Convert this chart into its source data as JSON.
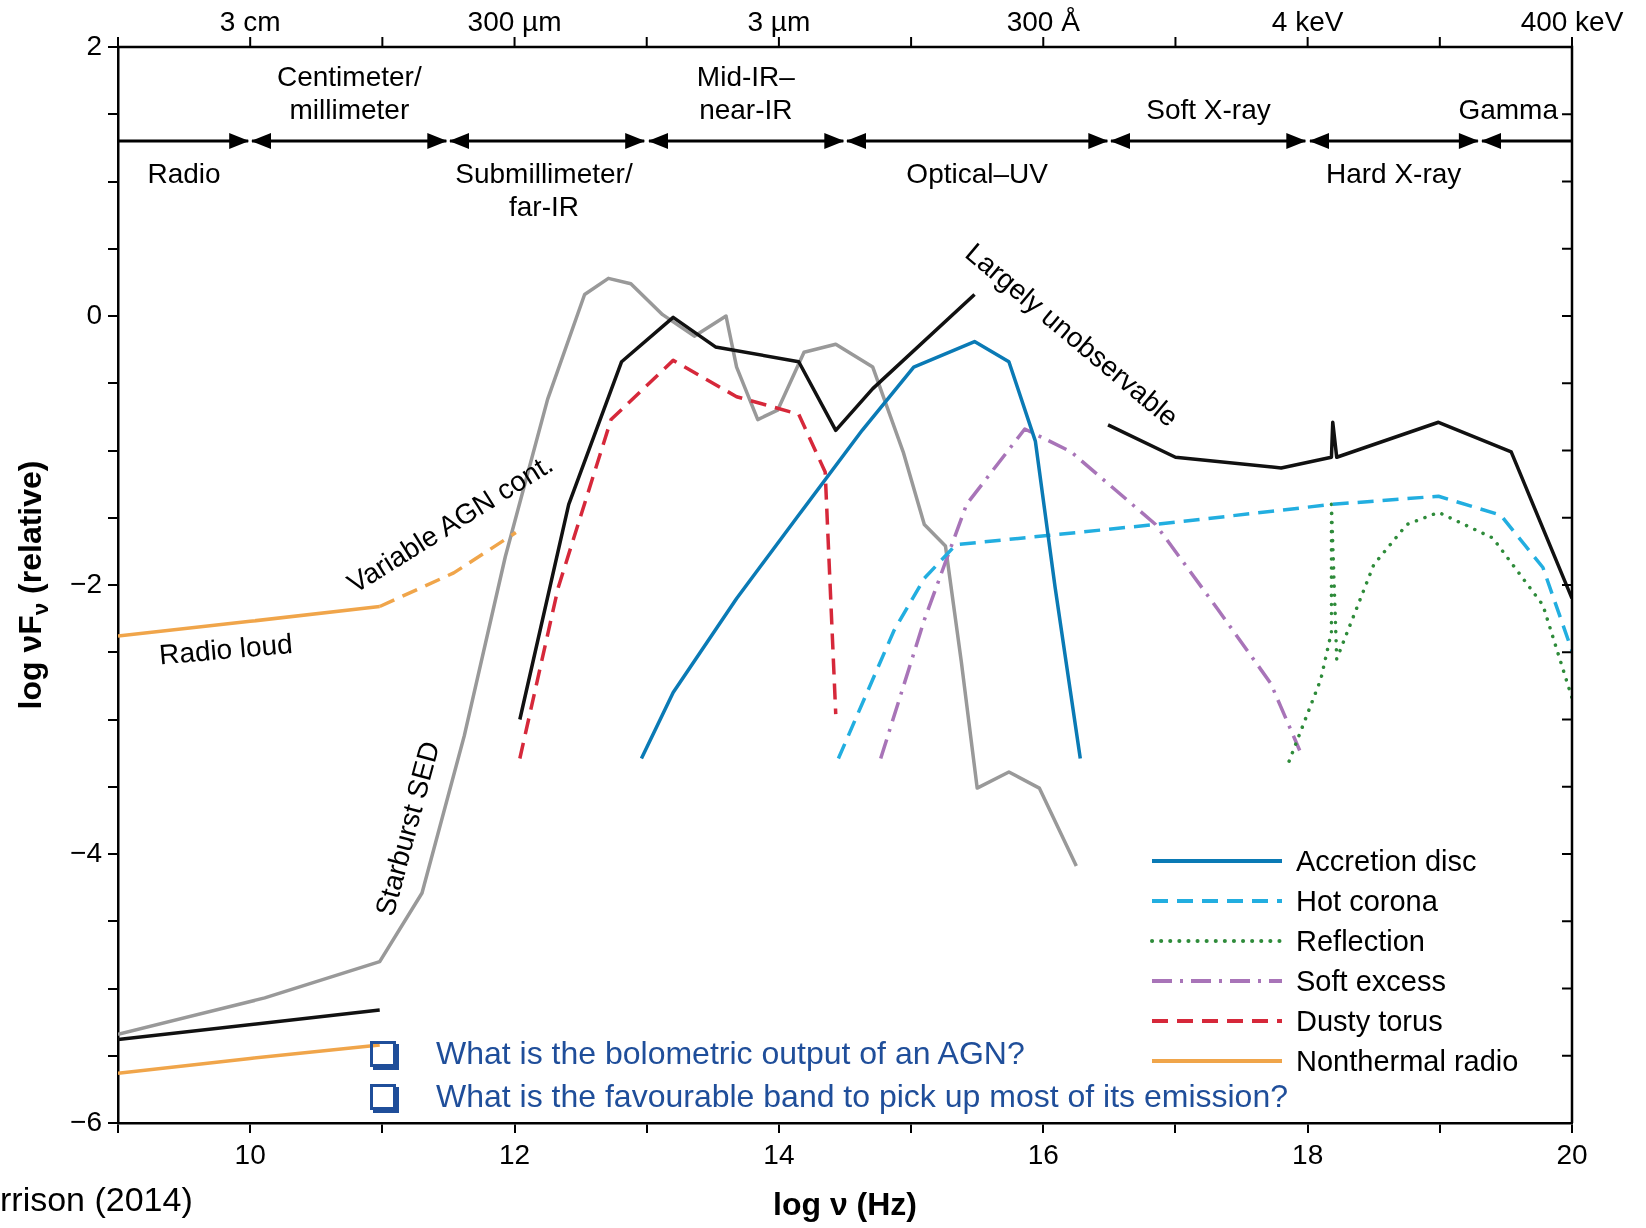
{
  "chart_data": {
    "type": "line",
    "xlabel": "log ν (Hz)",
    "ylabel": "log νF$_{ν}$ (relative)",
    "xlim": [
      9,
      20
    ],
    "ylim": [
      -6,
      2
    ],
    "xticks": [
      {
        "value": 9,
        "label": null
      },
      10,
      {
        "value": 11,
        "label": null
      },
      12,
      {
        "value": 13,
        "label": null
      },
      14,
      {
        "value": 15,
        "label": null
      },
      16,
      {
        "value": 17,
        "label": null
      },
      18,
      {
        "value": 19,
        "label": null
      },
      20
    ],
    "yticks": [
      -6,
      {
        "value": -5.5,
        "label": null
      },
      {
        "value": -5,
        "label": null
      },
      {
        "value": -4.5,
        "label": null
      },
      -4,
      {
        "value": -3.5,
        "label": null
      },
      {
        "value": -3,
        "label": null
      },
      {
        "value": -2.5,
        "label": null
      },
      -2,
      {
        "value": -1.5,
        "label": null
      },
      {
        "value": -1,
        "label": null
      },
      {
        "value": -0.5,
        "label": null
      },
      0,
      {
        "value": 0.5,
        "label": null
      },
      {
        "value": 1,
        "label": null
      },
      {
        "value": 1.5,
        "label": null
      },
      2
    ],
    "grid": false,
    "legend": "bottom right",
    "marker": "none",
    "series": [
      {
        "name": "Accretion disc",
        "color": "#0a7ab5",
        "line_style": "solid",
        "x": [
          12.96,
          13.2,
          13.68,
          14.15,
          14.63,
          15.02,
          15.48,
          15.74,
          15.94,
          16.09,
          16.28
        ],
        "values": [
          -3.29,
          -2.8,
          -2.1,
          -1.48,
          -0.85,
          -0.38,
          -0.19,
          -0.34,
          -0.93,
          -2.02,
          -3.29
        ]
      },
      {
        "name": "Hot corona",
        "color": "#22aee0",
        "line_style": "dashed",
        "x": [
          14.45,
          14.87,
          15.1,
          15.34,
          16.05,
          16.85,
          18.19,
          18.99,
          19.46,
          19.78,
          20
        ],
        "values": [
          -3.29,
          -2.34,
          -1.95,
          -1.7,
          -1.63,
          -1.55,
          -1.4,
          -1.34,
          -1.48,
          -1.87,
          -2.49
        ]
      },
      {
        "name": "Reflection",
        "color": "#2e8b3a",
        "line_style": "dotted",
        "x": [
          17.86,
          18.1,
          18.18,
          18.18,
          18.22,
          18.3,
          18.5,
          18.75,
          18.99,
          19.4,
          19.78,
          20
        ],
        "values": [
          -3.31,
          -2.7,
          -2.35,
          -1.4,
          -2.55,
          -2.35,
          -1.85,
          -1.55,
          -1.46,
          -1.65,
          -2.15,
          -2.84
        ]
      },
      {
        "name": "Soft excess",
        "color": "#a874b8",
        "line_style": "dashdot",
        "x": [
          14.77,
          15.1,
          15.42,
          15.86,
          16.21,
          16.85,
          17.32,
          17.72,
          17.94
        ],
        "values": [
          -3.29,
          -2.26,
          -1.4,
          -0.84,
          -1.01,
          -1.55,
          -2.18,
          -2.73,
          -3.23
        ]
      },
      {
        "name": "Dusty torus",
        "color": "#d6283a",
        "line_style": "dashed",
        "x": [
          12.04,
          12.33,
          12.73,
          13.2,
          13.68,
          14.15,
          14.35,
          14.43
        ],
        "values": [
          -3.29,
          -2.02,
          -0.77,
          -0.33,
          -0.6,
          -0.73,
          -1.16,
          -2.96
        ]
      },
      {
        "name": "Nonthermal radio",
        "color": "#f0a54a",
        "line_style": "solid",
        "x": [
          9,
          10,
          10.98
        ],
        "values": [
          -5.63,
          -5.52,
          -5.42
        ]
      },
      {
        "color": "#f0a54a",
        "line_style": "solid",
        "x": [
          9,
          10,
          10.98
        ],
        "values": [
          -2.38,
          -2.27,
          -2.16
        ]
      },
      {
        "color": "#f0a54a",
        "line_style": "dashed",
        "x": [
          10.98,
          11.54,
          12.01
        ],
        "values": [
          -2.16,
          -1.91,
          -1.61
        ]
      },
      {
        "color": "#111111",
        "line_style": "solid",
        "x": [
          9,
          10.98
        ],
        "values": [
          -5.38,
          -5.16
        ]
      },
      {
        "color": "#111111",
        "line_style": "solid",
        "x": [
          12.04,
          12.41,
          12.81,
          13.2,
          13.52,
          14.15,
          14.43,
          14.71,
          15.48
        ],
        "values": [
          -3.0,
          -1.4,
          -0.34,
          -0.01,
          -0.23,
          -0.34,
          -0.85,
          -0.54,
          0.16
        ]
      },
      {
        "color": "#111111",
        "line_style": "solid",
        "x": [
          16.49,
          17.0,
          17.8,
          18.18,
          18.19,
          18.22,
          18.99,
          19.54,
          20
        ],
        "values": [
          -0.81,
          -1.05,
          -1.13,
          -1.05,
          -0.79,
          -1.05,
          -0.79,
          -1.01,
          -2.1
        ]
      },
      {
        "color": "#999999",
        "line_style": "solid",
        "x": [
          9,
          10.11,
          10.98,
          11.3,
          11.62,
          11.93,
          12.25,
          12.53,
          12.71,
          12.88,
          13.12,
          13.36,
          13.6,
          13.68,
          13.84,
          13.99,
          14.19,
          14.43,
          14.71,
          14.94,
          15.1,
          15.26,
          15.38,
          15.5,
          15.74,
          15.97,
          16.25
        ],
        "values": [
          -5.34,
          -5.07,
          -4.8,
          -4.29,
          -3.12,
          -1.79,
          -0.62,
          0.16,
          0.28,
          0.24,
          0.01,
          -0.15,
          0,
          -0.38,
          -0.77,
          -0.7,
          -0.27,
          -0.21,
          -0.38,
          -1.01,
          -1.55,
          -1.71,
          -2.57,
          -3.51,
          -3.39,
          -3.51,
          -4.09
        ]
      }
    ],
    "annotations": [
      "3 cm",
      "300 µm",
      "3 µm",
      "300 Å",
      "4 keV",
      "400 keV",
      "Radio",
      "Centimeter/millimeter",
      "Submillimeter/far-IR",
      "Mid-IR–near-IR",
      "Optical–UV",
      "Soft X-ray",
      "Hard X-ray",
      "Gamma",
      "Variable AGN cont.",
      "Radio loud",
      "Starburst SED",
      "Largely unobservable",
      "What is the bolometric output of an AGN?",
      "What is the favourable band to pick up most of its emission?",
      "rrison (2014)"
    ]
  }
}
